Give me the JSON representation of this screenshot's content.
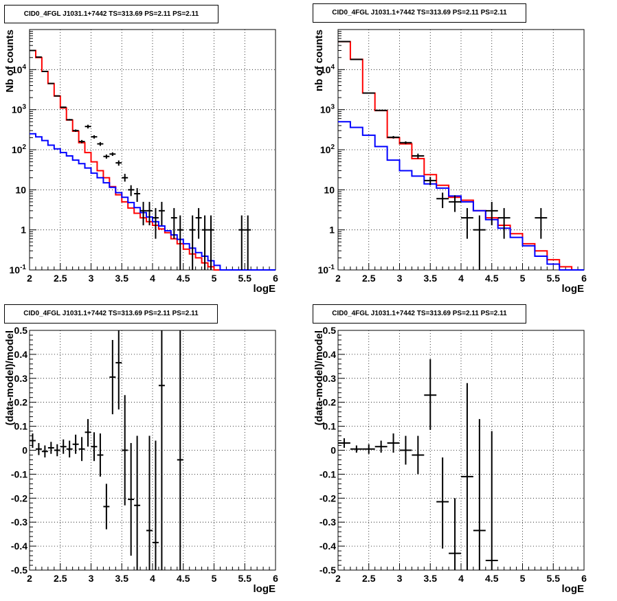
{
  "colors": {
    "data": "#000000",
    "total_model": "#ff0000",
    "background_model": "#0000ff",
    "grid": "#000000",
    "frame": "#000000"
  },
  "panels": [
    {
      "id": "top-left",
      "title": "CID0_4FGL J1031.1+7442 TS=313.69 PS=2.11 PS=2.11",
      "chart_data": {
        "type": "histogram-log",
        "xlabel": "logE",
        "ylabel": "Nb of counts",
        "xlim": [
          2,
          6
        ],
        "ylim": [
          0.1,
          100000
        ],
        "log_y": true,
        "grid": true,
        "x_ticks": [
          "2",
          "2.5",
          "3",
          "3.5",
          "4",
          "4.5",
          "5",
          "5.5",
          "6"
        ],
        "y_ticks": [
          "10^-1",
          "1",
          "10",
          "10^2",
          "10^3",
          "10^4"
        ],
        "bin_edges": [
          2.0,
          2.1,
          2.2,
          2.3,
          2.4,
          2.5,
          2.6,
          2.7,
          2.8,
          2.9,
          3.0,
          3.1,
          3.2,
          3.3,
          3.4,
          3.5,
          3.6,
          3.7,
          3.8,
          3.9,
          4.0,
          4.1,
          4.2,
          4.3,
          4.4,
          4.5,
          4.6,
          4.7,
          4.8,
          4.9,
          5.0,
          5.1,
          5.2,
          5.3,
          5.4,
          5.5,
          5.6,
          5.7,
          5.8,
          5.9,
          6.0
        ],
        "series": [
          {
            "name": "",
            "color": "#ff0000",
            "values": [
              30000,
              20000,
              9000,
              4500,
              2200,
              1100,
              550,
              290,
              150,
              85,
              50,
              30,
              20,
              12,
              7.5,
              5.0,
              3.5,
              2.6,
              2.0,
              1.6,
              1.3,
              1.05,
              0.85,
              0.6,
              0.45,
              0.33,
              0.25,
              0.2,
              0.15,
              0.12,
              0.1,
              0.1,
              0.1,
              0.1,
              0.1,
              0.1,
              0.1,
              0.1,
              0.1,
              0.1
            ]
          },
          {
            "name": "",
            "color": "#0000ff",
            "values": [
              250,
              210,
              170,
              130,
              105,
              85,
              70,
              55,
              45,
              35,
              26,
              20,
              15,
              11.5,
              8.5,
              6.5,
              4.8,
              3.6,
              2.7,
              2.1,
              1.6,
              1.25,
              0.95,
              0.75,
              0.58,
              0.45,
              0.35,
              0.27,
              0.22,
              0.17,
              0.13,
              0.1,
              0.1,
              0.1,
              0.1,
              0.1,
              0.1,
              0.1,
              0.1,
              0.1
            ]
          }
        ],
        "points": [
          {
            "x": 2.05,
            "y": 30000,
            "ylo": 29500,
            "yhi": 30500
          },
          {
            "x": 2.15,
            "y": 20500,
            "ylo": 20200,
            "yhi": 20800
          },
          {
            "x": 2.25,
            "y": 9000,
            "ylo": 8800,
            "yhi": 9200
          },
          {
            "x": 2.35,
            "y": 4500,
            "ylo": 4400,
            "yhi": 4600
          },
          {
            "x": 2.45,
            "y": 2200,
            "ylo": 2150,
            "yhi": 2250
          },
          {
            "x": 2.55,
            "y": 1150,
            "ylo": 1110,
            "yhi": 1190
          },
          {
            "x": 2.65,
            "y": 560,
            "ylo": 535,
            "yhi": 585
          },
          {
            "x": 2.75,
            "y": 300,
            "ylo": 280,
            "yhi": 320
          },
          {
            "x": 2.85,
            "y": 160,
            "ylo": 145,
            "yhi": 175
          },
          {
            "x": 2.95,
            "y": 380,
            "ylo": 340,
            "yhi": 420
          },
          {
            "x": 3.05,
            "y": 210,
            "ylo": 190,
            "yhi": 230
          },
          {
            "x": 3.15,
            "y": 140,
            "ylo": 125,
            "yhi": 155
          },
          {
            "x": 3.25,
            "y": 68,
            "ylo": 60,
            "yhi": 76
          },
          {
            "x": 3.35,
            "y": 78,
            "ylo": 70,
            "yhi": 86
          },
          {
            "x": 3.45,
            "y": 47,
            "ylo": 40,
            "yhi": 54
          },
          {
            "x": 3.55,
            "y": 20,
            "ylo": 16,
            "yhi": 25
          },
          {
            "x": 3.65,
            "y": 10,
            "ylo": 7,
            "yhi": 13
          },
          {
            "x": 3.75,
            "y": 8,
            "ylo": 5,
            "yhi": 11
          },
          {
            "x": 3.85,
            "y": 3,
            "ylo": 1.3,
            "yhi": 5
          },
          {
            "x": 3.95,
            "y": 3,
            "ylo": 1.3,
            "yhi": 5
          },
          {
            "x": 4.05,
            "y": 2,
            "ylo": 0.6,
            "yhi": 3.5
          },
          {
            "x": 4.15,
            "y": 3,
            "ylo": 1.3,
            "yhi": 5
          },
          {
            "x": 4.35,
            "y": 2,
            "ylo": 0.6,
            "yhi": 3.5
          },
          {
            "x": 4.45,
            "y": 1,
            "ylo": 0.1,
            "yhi": 2.3
          },
          {
            "x": 4.65,
            "y": 1,
            "ylo": 0.1,
            "yhi": 2.3
          },
          {
            "x": 4.75,
            "y": 2,
            "ylo": 0.6,
            "yhi": 3.5
          },
          {
            "x": 4.85,
            "y": 1,
            "ylo": 0.1,
            "yhi": 2.3
          },
          {
            "x": 4.95,
            "y": 1,
            "ylo": 0.1,
            "yhi": 2.3
          },
          {
            "x": 5.45,
            "y": 1,
            "ylo": 0.1,
            "yhi": 2.3
          },
          {
            "x": 5.55,
            "y": 1,
            "ylo": 0.1,
            "yhi": 2.3
          }
        ],
        "point_half_width": 0.05
      }
    },
    {
      "id": "top-right",
      "title": "CID0_4FGL J1031.1+7442 TS=313.69 PS=2.11 PS=2.11",
      "chart_data": {
        "type": "histogram-log",
        "xlabel": "logE",
        "ylabel": "nb of counts",
        "xlim": [
          2,
          6
        ],
        "ylim": [
          0.1,
          100000
        ],
        "log_y": true,
        "grid": true,
        "x_ticks": [
          "2",
          "2.5",
          "3",
          "3.5",
          "4",
          "4.5",
          "5",
          "5.5",
          "6"
        ],
        "y_ticks": [
          "10^-1",
          "1",
          "10",
          "10^2",
          "10^3",
          "10^4"
        ],
        "bin_edges": [
          2.0,
          2.2,
          2.4,
          2.6,
          2.8,
          3.0,
          3.2,
          3.4,
          3.6,
          3.8,
          4.0,
          4.2,
          4.4,
          4.6,
          4.8,
          5.0,
          5.2,
          5.4,
          5.6,
          5.8,
          6.0
        ],
        "series": [
          {
            "name": "",
            "color": "#ff0000",
            "values": [
              50000,
              18000,
              2600,
              950,
              200,
              140,
              60,
              24,
              13,
              6.5,
              5.5,
              3,
              2,
              1.3,
              0.8,
              0.45,
              0.3,
              0.18,
              0.12,
              0.1
            ]
          },
          {
            "name": "",
            "color": "#0000ff",
            "values": [
              500,
              360,
              230,
              120,
              55,
              30,
              22,
              14,
              11,
              7,
              5,
              3,
              1.8,
              1.1,
              0.65,
              0.4,
              0.22,
              0.14,
              0.1,
              0.1
            ]
          }
        ],
        "points": [
          {
            "x": 2.1,
            "y": 50000,
            "ylo": 49500,
            "yhi": 50500
          },
          {
            "x": 2.3,
            "y": 18000,
            "ylo": 17800,
            "yhi": 18200
          },
          {
            "x": 2.5,
            "y": 2600,
            "ylo": 2550,
            "yhi": 2650
          },
          {
            "x": 2.7,
            "y": 960,
            "ylo": 930,
            "yhi": 990
          },
          {
            "x": 2.9,
            "y": 205,
            "ylo": 190,
            "yhi": 220
          },
          {
            "x": 3.1,
            "y": 150,
            "ylo": 138,
            "yhi": 162
          },
          {
            "x": 3.3,
            "y": 70,
            "ylo": 60,
            "yhi": 80
          },
          {
            "x": 3.5,
            "y": 17,
            "ylo": 13,
            "yhi": 21
          },
          {
            "x": 3.7,
            "y": 6,
            "ylo": 3.5,
            "yhi": 8.5
          },
          {
            "x": 3.9,
            "y": 5,
            "ylo": 2.8,
            "yhi": 7.3
          },
          {
            "x": 4.1,
            "y": 2,
            "ylo": 0.6,
            "yhi": 3.5
          },
          {
            "x": 4.3,
            "y": 1,
            "ylo": 0.1,
            "yhi": 2.3
          },
          {
            "x": 4.5,
            "y": 3,
            "ylo": 1.3,
            "yhi": 5
          },
          {
            "x": 4.7,
            "y": 2,
            "ylo": 0.6,
            "yhi": 3.5
          },
          {
            "x": 5.3,
            "y": 2,
            "ylo": 0.6,
            "yhi": 3.5
          }
        ],
        "point_half_width": 0.1
      }
    },
    {
      "id": "bottom-left",
      "title": "CID0_4FGL J1031.1+7442 TS=313.69 PS=2.11 PS=2.11",
      "chart_data": {
        "type": "scatter-errorbars",
        "xlabel": "logE",
        "ylabel": "(data-model)/model",
        "xlim": [
          2,
          6
        ],
        "ylim": [
          -0.5,
          0.5
        ],
        "log_y": false,
        "grid": true,
        "x_ticks": [
          "2",
          "2.5",
          "3",
          "3.5",
          "4",
          "4.5",
          "5",
          "5.5",
          "6"
        ],
        "y_ticks": [
          "-0.5",
          "-0.4",
          "-0.3",
          "-0.2",
          "-0.1",
          "0",
          "0.1",
          "0.2",
          "0.3",
          "0.4",
          "0.5"
        ],
        "points": [
          {
            "x": 2.05,
            "y": 0.04,
            "ylo": 0.01,
            "yhi": 0.07
          },
          {
            "x": 2.15,
            "y": 0.005,
            "ylo": -0.02,
            "yhi": 0.03
          },
          {
            "x": 2.25,
            "y": -0.005,
            "ylo": -0.03,
            "yhi": 0.02
          },
          {
            "x": 2.35,
            "y": 0.01,
            "ylo": -0.015,
            "yhi": 0.035
          },
          {
            "x": 2.45,
            "y": 0.0,
            "ylo": -0.025,
            "yhi": 0.025
          },
          {
            "x": 2.55,
            "y": 0.015,
            "ylo": -0.015,
            "yhi": 0.045
          },
          {
            "x": 2.65,
            "y": 0.005,
            "ylo": -0.03,
            "yhi": 0.04
          },
          {
            "x": 2.75,
            "y": 0.025,
            "ylo": -0.015,
            "yhi": 0.065
          },
          {
            "x": 2.85,
            "y": 0.005,
            "ylo": -0.045,
            "yhi": 0.055
          },
          {
            "x": 2.95,
            "y": 0.075,
            "ylo": 0.015,
            "yhi": 0.13
          },
          {
            "x": 3.05,
            "y": 0.015,
            "ylo": -0.045,
            "yhi": 0.075
          },
          {
            "x": 3.15,
            "y": -0.02,
            "ylo": -0.11,
            "yhi": 0.07
          },
          {
            "x": 3.25,
            "y": -0.235,
            "ylo": -0.33,
            "yhi": -0.14
          },
          {
            "x": 3.35,
            "y": 0.305,
            "ylo": 0.15,
            "yhi": 0.46
          },
          {
            "x": 3.45,
            "y": 0.365,
            "ylo": 0.17,
            "yhi": 0.5
          },
          {
            "x": 3.55,
            "y": 0.0,
            "ylo": -0.23,
            "yhi": 0.23
          },
          {
            "x": 3.65,
            "y": -0.205,
            "ylo": -0.44,
            "yhi": 0.03
          },
          {
            "x": 3.75,
            "y": -0.23,
            "ylo": -0.5,
            "yhi": 0.06
          },
          {
            "x": 3.95,
            "y": -0.335,
            "ylo": -0.5,
            "yhi": 0.06
          },
          {
            "x": 4.05,
            "y": -0.385,
            "ylo": -0.5,
            "yhi": 0.04
          },
          {
            "x": 4.15,
            "y": 0.27,
            "ylo": -0.5,
            "yhi": 0.5
          },
          {
            "x": 4.45,
            "y": -0.04,
            "ylo": -0.5,
            "yhi": 0.5
          }
        ],
        "point_half_width": 0.05
      }
    },
    {
      "id": "bottom-right",
      "title": "CID0_4FGL J1031.1+7442 TS=313.69 PS=2.11 PS=2.11",
      "chart_data": {
        "type": "scatter-errorbars",
        "xlabel": "logE",
        "ylabel": "(data-model)/model",
        "xlim": [
          2,
          6
        ],
        "ylim": [
          -0.5,
          0.5
        ],
        "log_y": false,
        "grid": true,
        "x_ticks": [
          "2",
          "2.5",
          "3",
          "3.5",
          "4",
          "4.5",
          "5",
          "5.5",
          "6"
        ],
        "y_ticks": [
          "-0.5",
          "-0.4",
          "-0.3",
          "-0.2",
          "-0.1",
          "0",
          "0.1",
          "0.2",
          "0.3",
          "0.4",
          "0.5"
        ],
        "points": [
          {
            "x": 2.1,
            "y": 0.03,
            "ylo": 0.01,
            "yhi": 0.05
          },
          {
            "x": 2.3,
            "y": 0.005,
            "ylo": -0.01,
            "yhi": 0.02
          },
          {
            "x": 2.5,
            "y": 0.005,
            "ylo": -0.015,
            "yhi": 0.025
          },
          {
            "x": 2.7,
            "y": 0.015,
            "ylo": -0.01,
            "yhi": 0.04
          },
          {
            "x": 2.9,
            "y": 0.03,
            "ylo": -0.01,
            "yhi": 0.07
          },
          {
            "x": 3.1,
            "y": 0.0,
            "ylo": -0.06,
            "yhi": 0.06
          },
          {
            "x": 3.3,
            "y": -0.02,
            "ylo": -0.1,
            "yhi": 0.06
          },
          {
            "x": 3.5,
            "y": 0.23,
            "ylo": 0.085,
            "yhi": 0.38
          },
          {
            "x": 3.7,
            "y": -0.215,
            "ylo": -0.41,
            "yhi": -0.03
          },
          {
            "x": 3.9,
            "y": -0.43,
            "ylo": -0.5,
            "yhi": -0.2
          },
          {
            "x": 4.1,
            "y": -0.11,
            "ylo": -0.5,
            "yhi": 0.28
          },
          {
            "x": 4.3,
            "y": -0.335,
            "ylo": -0.5,
            "yhi": 0.13
          },
          {
            "x": 4.5,
            "y": -0.46,
            "ylo": -0.5,
            "yhi": 0.08
          }
        ],
        "point_half_width": 0.1
      }
    }
  ]
}
